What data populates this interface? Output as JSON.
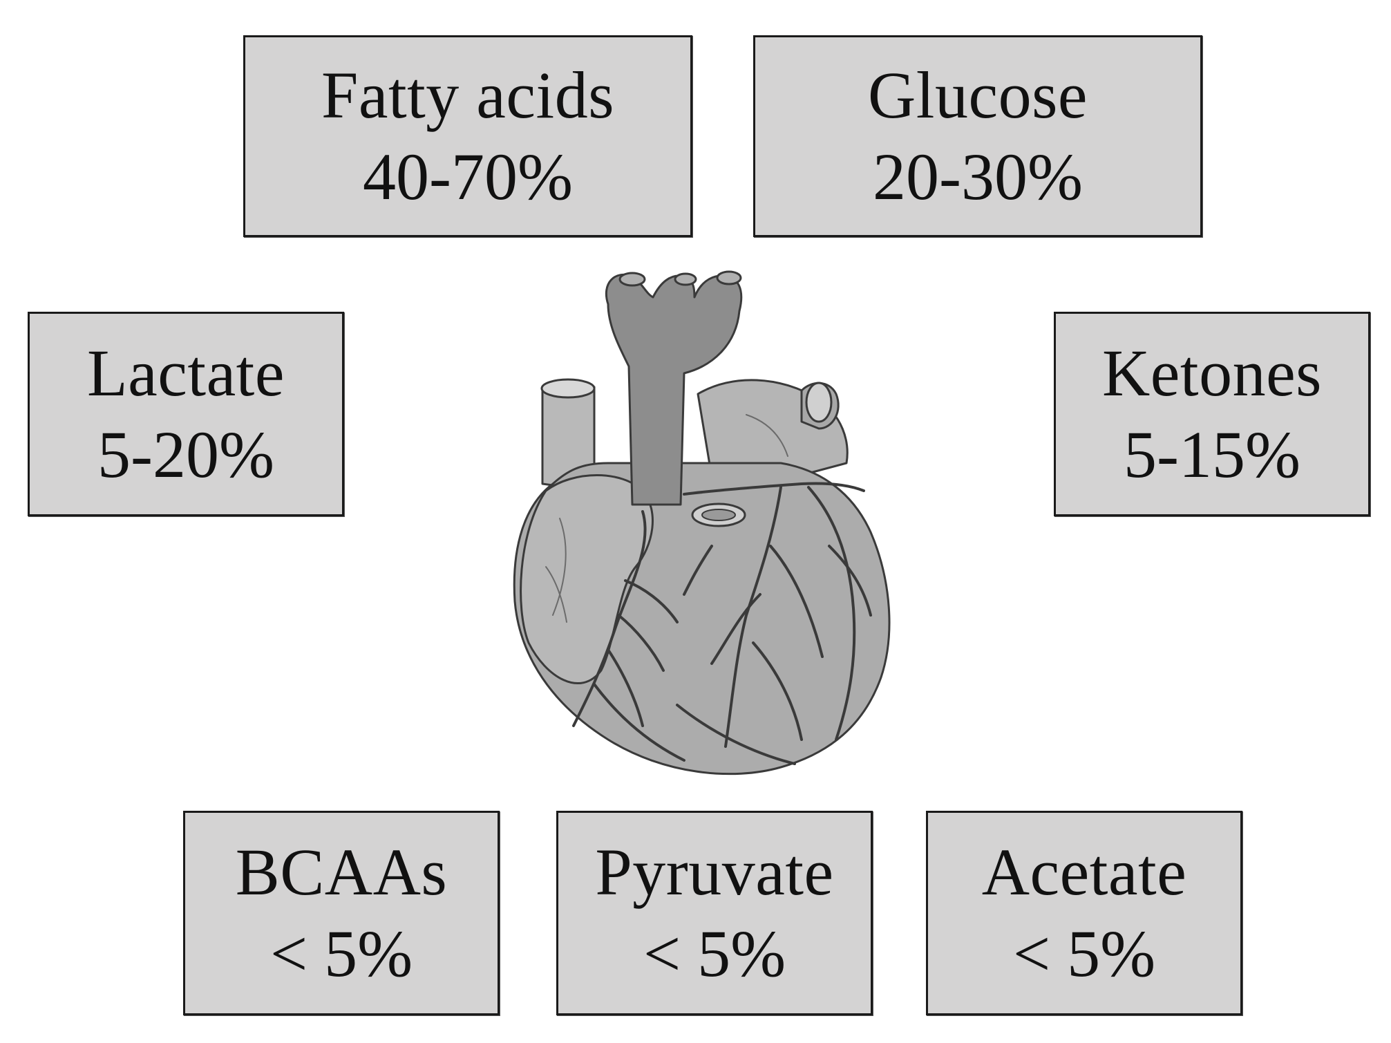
{
  "substrates": {
    "fatty_acids": {
      "name": "Fatty acids",
      "percent": "40-70%"
    },
    "glucose": {
      "name": "Glucose",
      "percent": "20-30%"
    },
    "lactate": {
      "name": "Lactate",
      "percent": "5-20%"
    },
    "ketones": {
      "name": "Ketones",
      "percent": "5-15%"
    },
    "bcaas": {
      "name": "BCAAs",
      "percent": "< 5%"
    },
    "pyruvate": {
      "name": "Pyruvate",
      "percent": "< 5%"
    },
    "acetate": {
      "name": "Acetate",
      "percent": "< 5%"
    }
  },
  "style": {
    "box_fill": "#d4d3d3",
    "box_border": "#1a1a1a",
    "heart_fill": "#a9a9a9",
    "vessel_color": "#3a3a3a"
  },
  "illustration": {
    "icon": "heart-icon"
  }
}
